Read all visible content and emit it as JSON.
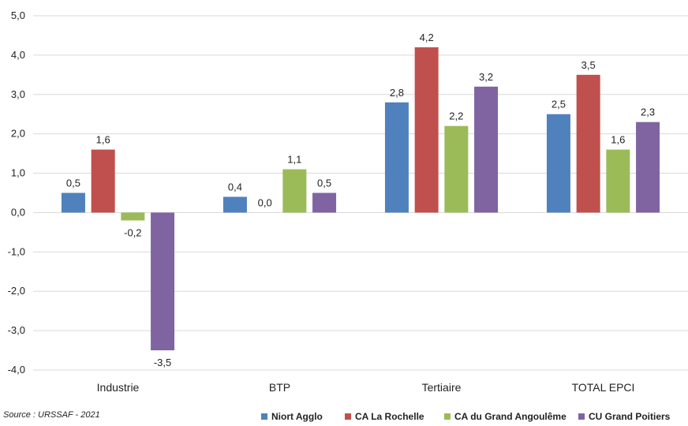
{
  "chart_data": {
    "type": "bar",
    "categories": [
      "Industrie",
      "BTP",
      "Tertiaire",
      "TOTAL EPCI"
    ],
    "series": [
      {
        "name": "Niort Agglo",
        "color": "#4F81BD",
        "values": [
          0.5,
          0.4,
          2.8,
          2.5
        ],
        "labels": [
          "0,5",
          "0,4",
          "2,8",
          "2,5"
        ]
      },
      {
        "name": "CA La Rochelle",
        "color": "#C0504D",
        "values": [
          1.6,
          0.0,
          4.2,
          3.5
        ],
        "labels": [
          "1,6",
          "0,0",
          "4,2",
          "3,5"
        ]
      },
      {
        "name": "CA du Grand Angoulême",
        "color": "#9BBB59",
        "values": [
          -0.2,
          1.1,
          2.2,
          1.6
        ],
        "labels": [
          "-0,2",
          "1,1",
          "2,2",
          "1,6"
        ]
      },
      {
        "name": "CU Grand Poitiers",
        "color": "#8064A2",
        "values": [
          -3.5,
          0.5,
          3.2,
          2.3
        ],
        "labels": [
          "-3,5",
          "0,5",
          "3,2",
          "2,3"
        ]
      }
    ],
    "ylim": [
      -4.0,
      5.0
    ],
    "yticks": [
      -4.0,
      -3.0,
      -2.0,
      -1.0,
      0.0,
      1.0,
      2.0,
      3.0,
      4.0,
      5.0
    ],
    "ytick_labels": [
      "-4,0",
      "-3,0",
      "-2,0",
      "-1,0",
      "0,0",
      "1,0",
      "2,0",
      "3,0",
      "4,0",
      "5,0"
    ],
    "grid": true,
    "legend_position": "bottom-right"
  },
  "source": "Source : URSSAF - 2021"
}
